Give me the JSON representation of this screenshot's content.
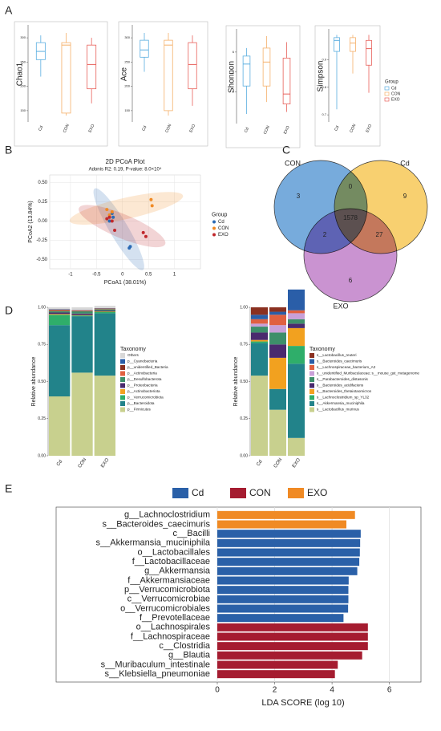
{
  "panel_labels": [
    "A",
    "B",
    "C",
    "D",
    "E"
  ],
  "chart_data": [
    {
      "type": "box",
      "ylabel": "Chao1",
      "categories": [
        "Cd",
        "CON",
        "EXO"
      ],
      "colors": [
        "#5aaee0",
        "#f5b06a",
        "#e8605a"
      ],
      "boxes": [
        {
          "min": 220,
          "q1": 255,
          "median": 272,
          "q3": 290,
          "max": 305
        },
        {
          "min": 140,
          "q1": 145,
          "median": 285,
          "q3": 290,
          "max": 310
        },
        {
          "min": 165,
          "q1": 195,
          "median": 245,
          "q3": 285,
          "max": 300
        }
      ],
      "ylim": [
        130,
        320
      ],
      "yticks": [
        150,
        200,
        250,
        300
      ]
    },
    {
      "type": "box",
      "ylabel": "Ace",
      "categories": [
        "Cd",
        "CON",
        "EXO"
      ],
      "colors": [
        "#5aaee0",
        "#f5b06a",
        "#e8605a"
      ],
      "boxes": [
        {
          "min": 230,
          "q1": 260,
          "median": 275,
          "q3": 295,
          "max": 310
        },
        {
          "min": 140,
          "q1": 150,
          "median": 285,
          "q3": 295,
          "max": 310
        },
        {
          "min": 160,
          "q1": 195,
          "median": 245,
          "q3": 290,
          "max": 305
        }
      ],
      "ylim": [
        130,
        320
      ],
      "yticks": [
        150,
        200,
        250,
        300
      ]
    },
    {
      "type": "box",
      "ylabel": "Shonnon",
      "categories": [
        "Cd",
        "CON",
        "EXO"
      ],
      "colors": [
        "#5aaee0",
        "#f5b06a",
        "#e8605a"
      ],
      "boxes": [
        {
          "min": 2.9,
          "q1": 4.3,
          "median": 5.4,
          "q3": 5.8,
          "max": 6.2
        },
        {
          "min": 3.5,
          "q1": 4.3,
          "median": 5.5,
          "q3": 6.2,
          "max": 6.8
        },
        {
          "min": 3.0,
          "q1": 3.4,
          "median": 3.9,
          "q3": 5.7,
          "max": 6.5
        }
      ],
      "ylim": [
        2.5,
        7
      ],
      "yticks": [
        4,
        5,
        6
      ]
    },
    {
      "type": "box",
      "ylabel": "Simpson",
      "categories": [
        "Cd",
        "CON",
        "EXO"
      ],
      "colors": [
        "#5aaee0",
        "#f5b06a",
        "#e8605a"
      ],
      "legend_title": "Group",
      "boxes": [
        {
          "min": 0.72,
          "q1": 0.93,
          "median": 0.97,
          "q3": 0.98,
          "max": 0.99
        },
        {
          "min": 0.85,
          "q1": 0.93,
          "median": 0.96,
          "q3": 0.98,
          "max": 0.99
        },
        {
          "min": 0.78,
          "q1": 0.88,
          "median": 0.94,
          "q3": 0.97,
          "max": 0.99
        }
      ],
      "ylim": [
        0.68,
        1.0
      ],
      "yticks": [
        0.7,
        0.8,
        0.9
      ]
    },
    {
      "type": "scatter",
      "title": "2D PCoA Plot",
      "subtitle": "Adonis R2: 0.19, P-value: 8.0×10⁴",
      "xlabel": "PCoA1 (38.01%)",
      "ylabel": "PCoA2 (13.84%)",
      "legend_title": "Group",
      "series": [
        {
          "name": "Cd",
          "color": "#2a6ab5",
          "x": [
            -0.2,
            -0.18,
            0.13,
            -0.25,
            0.15
          ],
          "y": [
            0.1,
            0.05,
            -0.35,
            0.0,
            -0.33
          ]
        },
        {
          "name": "CON",
          "color": "#f08a24",
          "x": [
            0.55,
            0.57,
            -0.25,
            -0.3,
            -0.2
          ],
          "y": [
            0.28,
            0.2,
            0.08,
            0.15,
            0.12
          ]
        },
        {
          "name": "EXO",
          "color": "#c0282c",
          "x": [
            -0.25,
            -0.2,
            -0.15,
            0.4,
            0.45,
            -0.3
          ],
          "y": [
            0.05,
            0.0,
            -0.12,
            -0.15,
            -0.2,
            0.03
          ]
        }
      ],
      "xlim": [
        -1.4,
        1.5
      ],
      "ylim": [
        -0.62,
        0.6
      ],
      "xticks": [
        -1.0,
        -0.5,
        0.0,
        0.5,
        1.0
      ],
      "yticks": [
        {
          "value": 0.5,
          "label": "0.50"
        },
        {
          "value": 0.25,
          "label": "0.25"
        },
        {
          "value": 0,
          "label": "0.00"
        },
        {
          "value": -0.25,
          "label": "-0.25"
        },
        {
          "value": -0.5,
          "label": "-0.50"
        }
      ],
      "grid": true
    },
    {
      "type": "venn",
      "sets": [
        {
          "name": "CON",
          "color": "#4a8fd0"
        },
        {
          "name": "Cd",
          "color": "#f5c040"
        },
        {
          "name": "EXO",
          "color": "#b86fc2"
        }
      ],
      "values": [
        3,
        0,
        9,
        1578,
        2,
        27,
        6
      ]
    },
    {
      "type": "stacked_bar",
      "ylabel": "Relative abundance",
      "legend_title": "Taxonomy",
      "categories": [
        "Cd",
        "CON",
        "EXO"
      ],
      "ylim": [
        0,
        1
      ],
      "yticks": [
        {
          "value": 0,
          "label": "0.00"
        },
        {
          "value": 0.25,
          "label": "0.25"
        },
        {
          "value": 0.5,
          "label": "0.50"
        },
        {
          "value": 0.75,
          "label": "0.75"
        },
        {
          "value": 1,
          "label": "1.00"
        }
      ],
      "series": [
        {
          "name": "p__Firmicutes",
          "color": "#c8d08e",
          "values": [
            0.4,
            0.56,
            0.54
          ]
        },
        {
          "name": "p__Bacteroidota",
          "color": "#22838a",
          "values": [
            0.48,
            0.38,
            0.42
          ]
        },
        {
          "name": "p__Verrucomicrobiota",
          "color": "#2fae6a",
          "values": [
            0.07,
            0.005,
            0.01
          ]
        },
        {
          "name": "p__Actinobacteriota",
          "color": "#f2a11f",
          "values": [
            0.005,
            0.003,
            0.003
          ]
        },
        {
          "name": "p__Proteobacteria",
          "color": "#4a2a6e",
          "values": [
            0.01,
            0.01,
            0.006
          ]
        },
        {
          "name": "p__Desulfobacterota",
          "color": "#3d8f6a",
          "values": [
            0.01,
            0.015,
            0.008
          ]
        },
        {
          "name": "p__Actinobacteria",
          "color": "#e06040",
          "values": [
            0.005,
            0.004,
            0.003
          ]
        },
        {
          "name": "p__unidentified_Bacteria",
          "color": "#8a3020",
          "values": [
            0.005,
            0.003,
            0.003
          ]
        },
        {
          "name": "p__Cyanobacteria",
          "color": "#2a5ea8",
          "values": [
            0.003,
            0.002,
            0.002
          ]
        },
        {
          "name": "Others",
          "color": "#d8d8d8",
          "values": [
            0.012,
            0.018,
            0.015
          ]
        }
      ]
    },
    {
      "type": "stacked_bar",
      "ylabel": "Relative abundance",
      "legend_title": "Taxonomy",
      "categories": [
        "Cd",
        "CON",
        "EXO"
      ],
      "ylim": [
        0,
        1
      ],
      "yticks": [
        {
          "value": 0,
          "label": "0.00"
        },
        {
          "value": 0.25,
          "label": "0.25"
        },
        {
          "value": 0.5,
          "label": "0.50"
        },
        {
          "value": 0.75,
          "label": "0.75"
        },
        {
          "value": 1,
          "label": "1.00"
        }
      ],
      "series": [
        {
          "name": "s__Lactobacillus_murinus",
          "color": "#c8d08e",
          "values": [
            0.54,
            0.31,
            0.12
          ]
        },
        {
          "name": "s__Akkermansia_muciniphila",
          "color": "#22838a",
          "values": [
            0.22,
            0.14,
            0.5
          ]
        },
        {
          "name": "s__Lachnoclostridium_sp_YL32",
          "color": "#2fae6a",
          "values": [
            0.01,
            0.0,
            0.12
          ]
        },
        {
          "name": "s__Bacteroides_thetaiotaomicron",
          "color": "#f2a11f",
          "values": [
            0.01,
            0.21,
            0.12
          ]
        },
        {
          "name": "s__Bacteroides_acidifaciens",
          "color": "#4a2a6e",
          "values": [
            0.05,
            0.09,
            0.03
          ]
        },
        {
          "name": "s__Parabacteroides_distasonis",
          "color": "#3d8f6a",
          "values": [
            0.04,
            0.08,
            0.03
          ]
        },
        {
          "name": "s__unidentified_Muribaculaceae; s__mouse_gut_metagenome",
          "color": "#c9a0d8",
          "values": [
            0.02,
            0.05,
            0.04
          ]
        },
        {
          "name": "s__Lachnospiraceae_bacterium_A2",
          "color": "#e06040",
          "values": [
            0.03,
            0.07,
            0.02
          ]
        },
        {
          "name": "s__Bacteroides_caecimuris",
          "color": "#2a5ea8",
          "values": [
            0.03,
            0.02,
            0.14
          ]
        },
        {
          "name": "s__Lactobacillus_reuteri",
          "color": "#8a3020",
          "values": [
            0.05,
            0.03,
            0.0
          ]
        }
      ]
    },
    {
      "type": "hbar",
      "xlabel": "LDA SCORE (log 10)",
      "xlim": [
        0,
        7.1
      ],
      "xticks": [
        0,
        2,
        4,
        6
      ],
      "grid": true,
      "series": [
        {
          "name": "Cd",
          "color": "#2a60a8",
          "categories": [
            "c__Bacilli",
            "s__Akkermansia_muciniphila",
            "o__Lactobacillales",
            "f__Lactobacillaceae",
            "g__Akkermansia",
            "f__Akkermansiaceae",
            "p__Verrucomicrobiota",
            "c__Verrucomicrobiae",
            "o__Verrucomicrobiales",
            "f__Prevotellaceae"
          ],
          "values": [
            5.0,
            4.98,
            4.97,
            4.95,
            4.88,
            4.58,
            4.57,
            4.57,
            4.56,
            4.4
          ]
        },
        {
          "name": "CON",
          "color": "#a51c30",
          "categories": [
            "o__Lachnospirales",
            "f__Lachnospiraceae",
            "c__Clostridia",
            "g__Blautia",
            "s__Muribaculum_intestinale",
            "s__Klebsiella_pneumoniae"
          ],
          "values": [
            5.25,
            5.25,
            5.25,
            5.05,
            4.2,
            4.1
          ]
        },
        {
          "name": "EXO",
          "color": "#f08a24",
          "categories": [
            "g__Lachnoclostridium",
            "s__Bacteroides_caecimuris"
          ],
          "values": [
            4.8,
            4.5
          ]
        }
      ]
    }
  ]
}
